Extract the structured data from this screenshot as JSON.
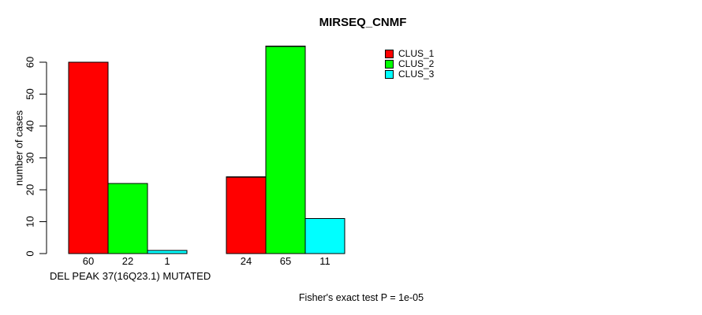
{
  "chart_data": {
    "type": "bar",
    "title": "MIRSEQ_CNMF",
    "xlabel": "DEL PEAK 37(16Q23.1) MUTATED",
    "ylabel": "number of cases",
    "ylim": [
      0,
      60
    ],
    "yticks": [
      0,
      10,
      20,
      30,
      40,
      50,
      60
    ],
    "grid": false,
    "legend_position": "top-right-inside",
    "series": [
      {
        "name": "CLUS_1",
        "color": "#ff0000",
        "values": [
          60,
          24
        ]
      },
      {
        "name": "CLUS_2",
        "color": "#00ff00",
        "values": [
          22,
          65
        ]
      },
      {
        "name": "CLUS_3",
        "color": "#00ffff",
        "values": [
          1,
          11
        ]
      }
    ],
    "bar_value_labels": [
      [
        "60",
        "22",
        "1"
      ],
      [
        "24",
        "65",
        "11"
      ]
    ],
    "annotation": "Fisher's exact test P = 1e-05",
    "colors": {
      "bar_border": "#000000",
      "axis": "#000000",
      "background": "#ffffff"
    }
  }
}
